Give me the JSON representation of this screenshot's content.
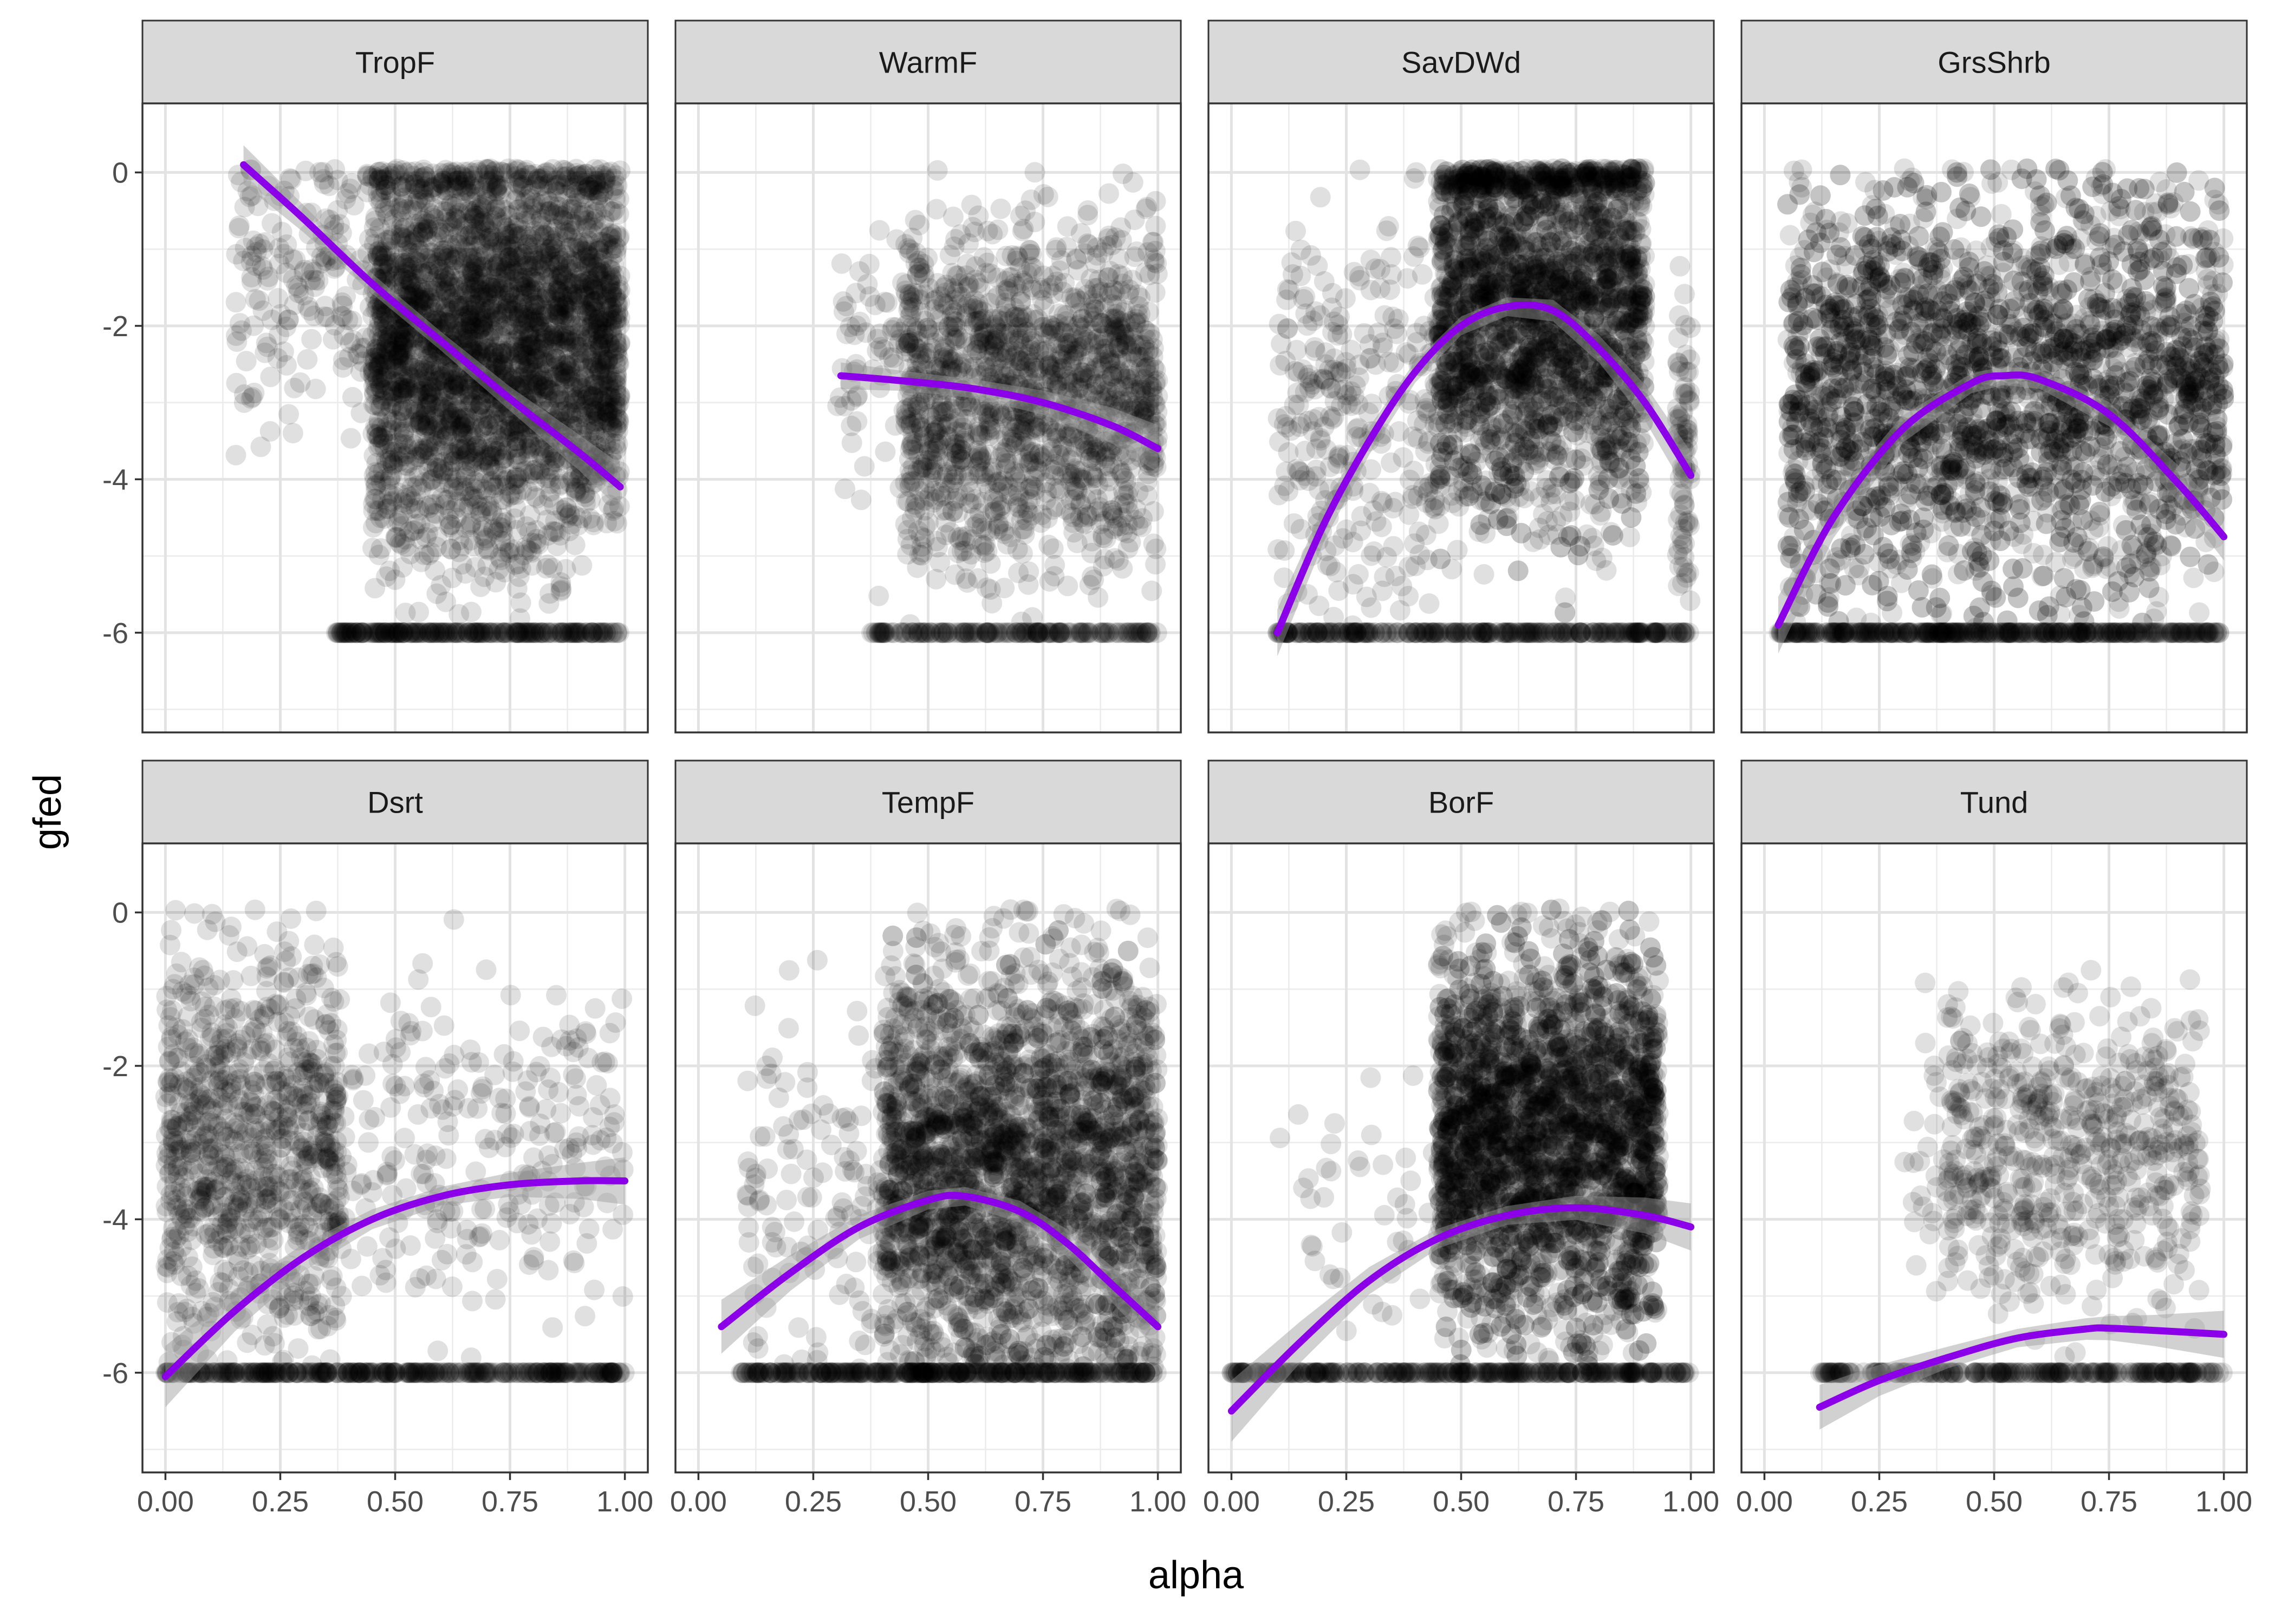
{
  "chart_data": {
    "type": "scatter",
    "xlabel": "alpha",
    "ylabel": "gfed",
    "xlim": [
      -0.05,
      1.05
    ],
    "ylim": [
      -7.3,
      0.9
    ],
    "x_ticks": [
      0.0,
      0.25,
      0.5,
      0.75,
      1.0
    ],
    "x_tick_labels": [
      "0.00",
      "0.25",
      "0.50",
      "0.75",
      "1.00"
    ],
    "y_ticks": [
      0,
      -2,
      -4,
      -6
    ],
    "y_tick_labels": [
      "0",
      "-2",
      "-4",
      "-6"
    ],
    "grid": true,
    "point_color": "#000000",
    "point_opacity": 0.12,
    "fit_color": "#8B00E8",
    "ribbon_color": "#999999",
    "strip_fill": "#D9D9D9",
    "panels": [
      {
        "name": "TropF",
        "fit": {
          "x": [
            0.17,
            0.3,
            0.45,
            0.6,
            0.75,
            0.9,
            0.99
          ],
          "y": [
            0.1,
            -0.6,
            -1.45,
            -2.2,
            -2.95,
            -3.65,
            -4.1
          ]
        }
      },
      {
        "name": "WarmF",
        "fit": {
          "x": [
            0.31,
            0.45,
            0.6,
            0.75,
            0.9,
            1.0
          ],
          "y": [
            -2.65,
            -2.72,
            -2.82,
            -3.0,
            -3.3,
            -3.6
          ]
        }
      },
      {
        "name": "SavDWd",
        "fit": {
          "x": [
            0.1,
            0.2,
            0.3,
            0.4,
            0.5,
            0.6,
            0.7,
            0.8,
            0.9,
            1.0
          ],
          "y": [
            -6.0,
            -4.6,
            -3.5,
            -2.6,
            -2.0,
            -1.75,
            -1.8,
            -2.3,
            -3.0,
            -3.95
          ]
        }
      },
      {
        "name": "GrsShrb",
        "fit": {
          "x": [
            0.03,
            0.15,
            0.3,
            0.45,
            0.52,
            0.6,
            0.75,
            0.9,
            1.0
          ],
          "y": [
            -5.9,
            -4.5,
            -3.35,
            -2.75,
            -2.65,
            -2.7,
            -3.15,
            -4.05,
            -4.75
          ]
        }
      },
      {
        "name": "Dsrt",
        "fit": {
          "x": [
            0.0,
            0.15,
            0.3,
            0.45,
            0.6,
            0.75,
            0.9,
            1.0
          ],
          "y": [
            -6.05,
            -5.2,
            -4.5,
            -4.0,
            -3.7,
            -3.55,
            -3.5,
            -3.5
          ]
        }
      },
      {
        "name": "TempF",
        "fit": {
          "x": [
            0.05,
            0.2,
            0.35,
            0.5,
            0.58,
            0.7,
            0.8,
            0.9,
            1.0
          ],
          "y": [
            -5.4,
            -4.7,
            -4.1,
            -3.75,
            -3.7,
            -3.9,
            -4.3,
            -4.85,
            -5.4
          ]
        }
      },
      {
        "name": "BorF",
        "fit": {
          "x": [
            0.0,
            0.15,
            0.3,
            0.45,
            0.6,
            0.75,
            0.9,
            1.0
          ],
          "y": [
            -6.5,
            -5.6,
            -4.8,
            -4.25,
            -3.95,
            -3.85,
            -3.95,
            -4.1
          ]
        }
      },
      {
        "name": "Tund",
        "fit": {
          "x": [
            0.12,
            0.25,
            0.4,
            0.55,
            0.7,
            0.75,
            0.85,
            1.0
          ],
          "y": [
            -6.45,
            -6.1,
            -5.8,
            -5.55,
            -5.43,
            -5.42,
            -5.45,
            -5.5
          ]
        }
      }
    ]
  }
}
